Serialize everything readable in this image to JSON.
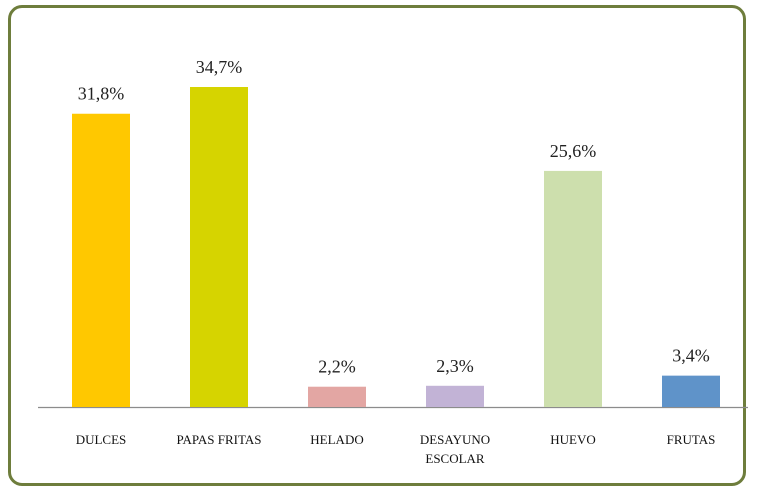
{
  "chart_data": {
    "type": "bar",
    "categories": [
      "DULCES",
      "PAPAS FRITAS",
      "HELADO",
      "DESAYUNO ESCOLAR",
      "HUEVO",
      "FRUTAS"
    ],
    "values": [
      31.8,
      34.7,
      2.2,
      2.3,
      25.6,
      3.4
    ],
    "value_labels": [
      "31,8%",
      "34,7%",
      "2,2%",
      "2,3%",
      "25,6%",
      "3,4%"
    ],
    "colors": [
      "#ffc800",
      "#d6d400",
      "#e3a6a3",
      "#c2b3d6",
      "#cddfad",
      "#5f93c9"
    ]
  }
}
